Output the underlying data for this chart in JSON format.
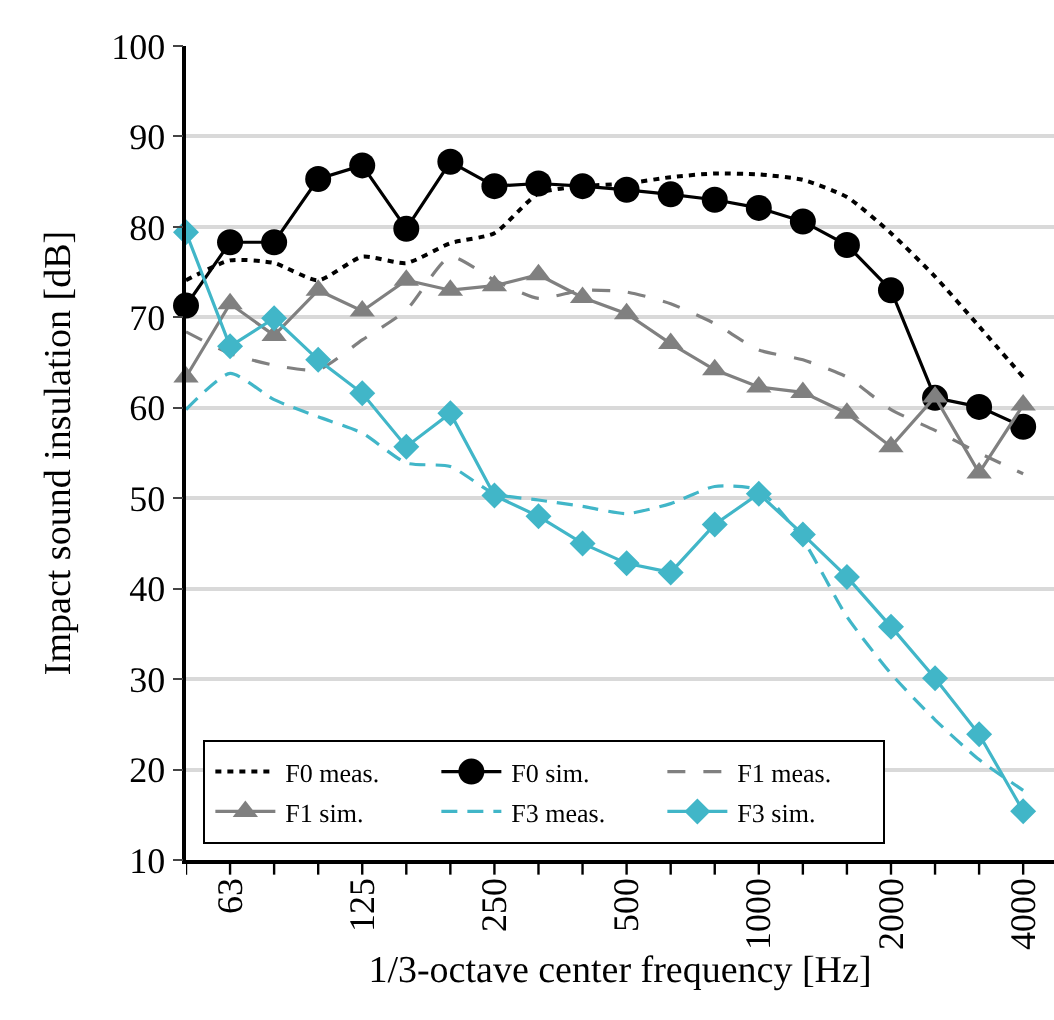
{
  "chart_data": {
    "type": "line",
    "xlabel": "1/3-octave center frequency [Hz]",
    "ylabel": "Impact sound insulation [dB]",
    "categories": [
      null,
      "63",
      null,
      null,
      "125",
      null,
      null,
      "250",
      null,
      null,
      "500",
      null,
      null,
      "1000",
      null,
      null,
      "2000",
      null,
      null,
      "4000"
    ],
    "ylim": [
      10,
      100
    ],
    "yticks": [
      10,
      20,
      30,
      40,
      50,
      60,
      70,
      80,
      90,
      100
    ],
    "grid": "y",
    "legend": "bottom left",
    "series": [
      {
        "name": "F0 meas.",
        "color": "#000000",
        "line_style": "dotted",
        "marker": "none",
        "values": [
          74.1,
          76.3,
          76.0,
          74.1,
          76.7,
          76.0,
          78.2,
          79.3,
          83.7,
          84.5,
          84.8,
          85.5,
          85.9,
          85.8,
          85.2,
          83.3,
          79.3,
          74.5,
          69.0,
          63.4
        ]
      },
      {
        "name": "F0 sim.",
        "color": "#000000",
        "line_style": "solid",
        "marker": "circle",
        "values": [
          71.3,
          78.3,
          78.3,
          85.3,
          86.8,
          79.8,
          87.2,
          84.5,
          84.8,
          84.5,
          84.1,
          83.6,
          83.0,
          82.1,
          80.6,
          78.0,
          73.0,
          61.1,
          60.1,
          57.9
        ]
      },
      {
        "name": "F1 meas.",
        "color": "#808080",
        "line_style": "dashed",
        "marker": "none",
        "values": [
          68.4,
          66.0,
          64.7,
          64.2,
          67.5,
          70.8,
          76.7,
          74.1,
          72.1,
          73.0,
          72.8,
          71.5,
          69.3,
          66.4,
          65.3,
          63.4,
          59.8,
          57.5,
          55.0,
          52.7
        ]
      },
      {
        "name": "F1 sim.",
        "color": "#808080",
        "line_style": "solid",
        "marker": "triangle",
        "values": [
          63.4,
          71.5,
          68.0,
          73.0,
          70.7,
          74.1,
          73.0,
          73.5,
          74.7,
          72.2,
          70.4,
          67.1,
          64.2,
          62.3,
          61.7,
          59.4,
          55.7,
          61.2,
          52.8,
          60.3
        ]
      },
      {
        "name": "F3 meas.",
        "color": "#41b6c8",
        "line_style": "dashed",
        "marker": "none",
        "values": [
          59.8,
          63.8,
          60.9,
          59.0,
          57.2,
          53.9,
          53.5,
          50.5,
          49.8,
          49.1,
          48.3,
          49.4,
          51.3,
          50.9,
          45.4,
          36.9,
          30.6,
          25.5,
          21.1,
          17.7
        ]
      },
      {
        "name": "F3 sim.",
        "color": "#41b6c8",
        "line_style": "solid",
        "marker": "diamond",
        "values": [
          79.4,
          66.8,
          69.9,
          65.3,
          61.6,
          55.7,
          59.4,
          50.3,
          48.0,
          45.0,
          42.8,
          41.8,
          47.1,
          50.5,
          46.0,
          41.3,
          35.8,
          30.1,
          23.9,
          15.4
        ]
      }
    ]
  }
}
